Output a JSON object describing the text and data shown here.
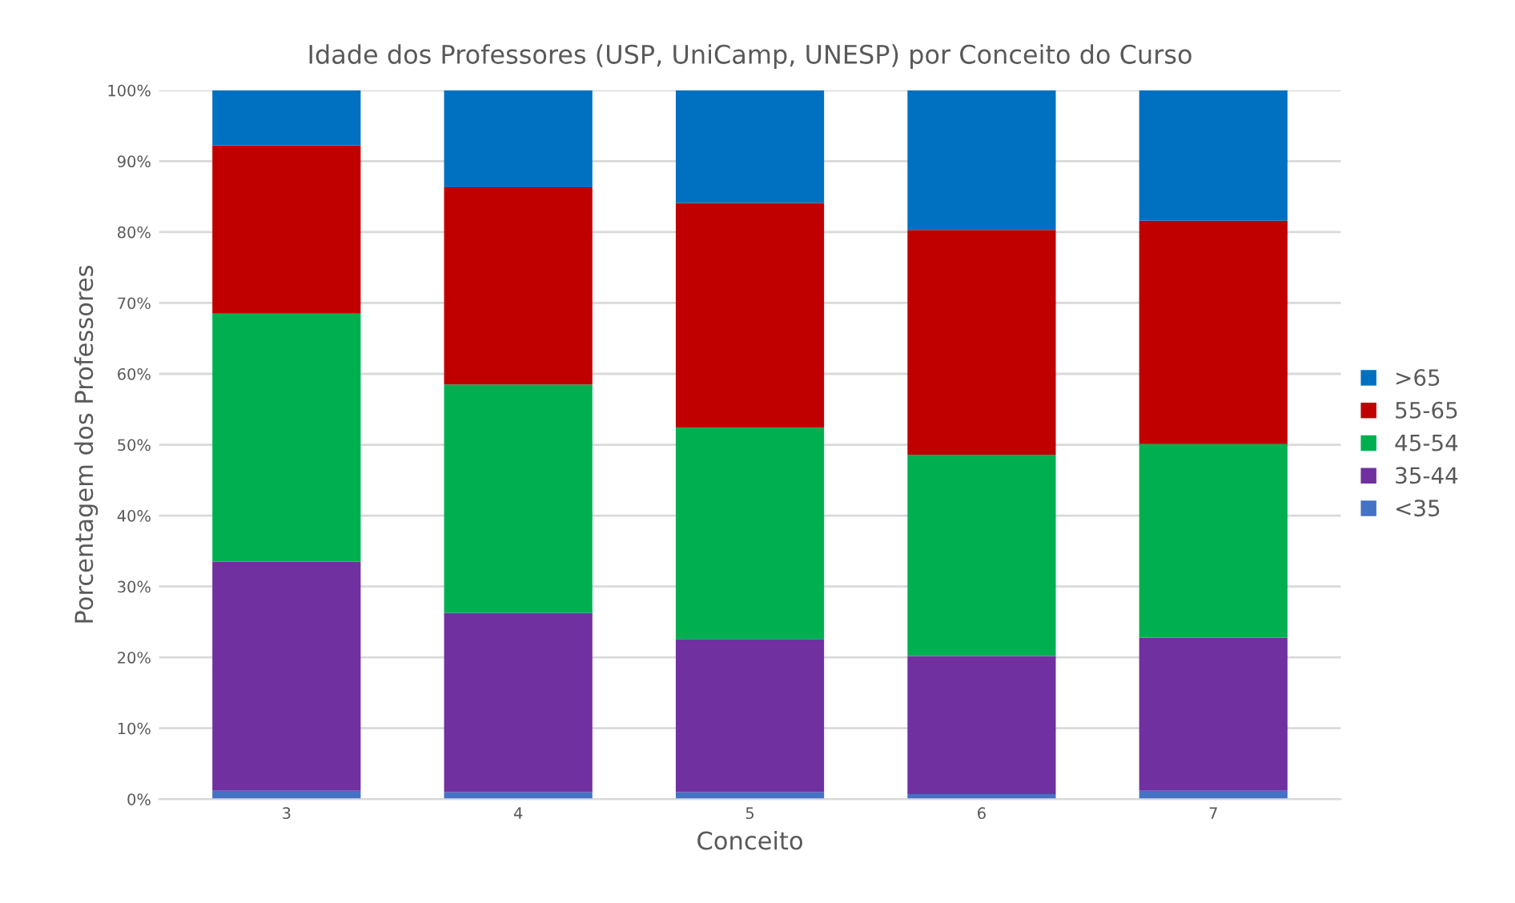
{
  "chart_data": {
    "type": "bar",
    "stacked": true,
    "title": "Idade dos Professores (USP, UniCamp, UNESP) por Conceito do Curso",
    "xlabel": "Conceito",
    "ylabel": "Porcentagem dos Professores",
    "categories": [
      "3",
      "4",
      "5",
      "6",
      "7"
    ],
    "series": [
      {
        "name": "<35",
        "color": "#4472c4",
        "values": [
          1.2,
          1.0,
          1.0,
          0.7,
          1.2
        ]
      },
      {
        "name": "35-44",
        "color": "#7030a0",
        "values": [
          32.3,
          25.3,
          21.6,
          19.5,
          21.6
        ]
      },
      {
        "name": "45-54",
        "color": "#00b050",
        "values": [
          35.0,
          32.2,
          29.8,
          28.4,
          27.3
        ]
      },
      {
        "name": "55-65",
        "color": "#c00000",
        "values": [
          23.7,
          27.8,
          31.7,
          31.7,
          31.5
        ]
      },
      {
        "name": ">65",
        "color": "#0070c0",
        "values": [
          7.8,
          13.7,
          15.9,
          19.7,
          18.4
        ]
      }
    ],
    "ylim": [
      0,
      100
    ],
    "yticks": [
      {
        "value": 0,
        "label": "0%"
      },
      {
        "value": 10,
        "label": "10%"
      },
      {
        "value": 20,
        "label": "20%"
      },
      {
        "value": 30,
        "label": "30%"
      },
      {
        "value": 40,
        "label": "40%"
      },
      {
        "value": 50,
        "label": "50%"
      },
      {
        "value": 60,
        "label": "60%"
      },
      {
        "value": 70,
        "label": "70%"
      },
      {
        "value": 80,
        "label": "80%"
      },
      {
        "value": 90,
        "label": "90%"
      },
      {
        "value": 100,
        "label": "100%"
      }
    ],
    "grid": "y",
    "legend": "right"
  }
}
